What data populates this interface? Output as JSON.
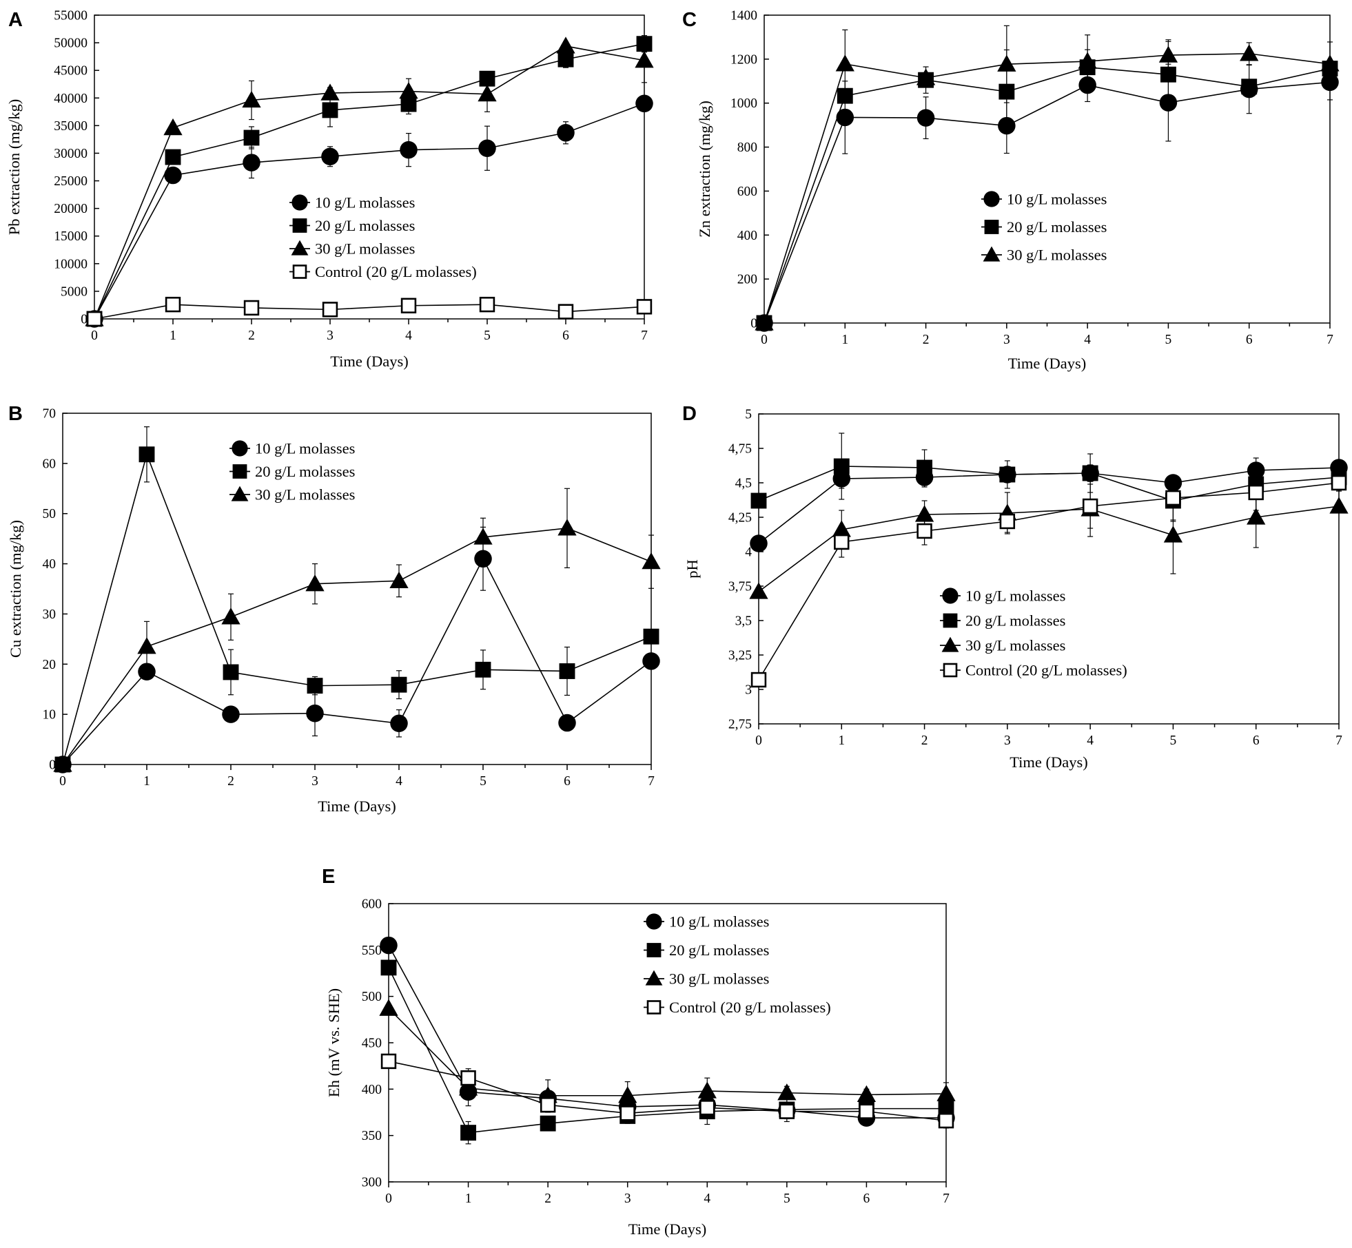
{
  "figure": {
    "colors": {
      "ink": "#000000",
      "background": "#ffffff"
    }
  },
  "chart_data": [
    {
      "panel": "A",
      "type": "line",
      "xlabel": "Time (Days)",
      "ylabel": "Pb extraction (mg/kg)",
      "xlim": [
        0,
        7
      ],
      "ylim": [
        0,
        55000
      ],
      "x_ticks": [
        0,
        1,
        2,
        3,
        4,
        5,
        6,
        7
      ],
      "y_ticks": [
        0,
        5000,
        10000,
        15000,
        20000,
        25000,
        30000,
        35000,
        40000,
        45000,
        50000,
        55000
      ],
      "y_tick_labels": [
        "0",
        "5000",
        "10000",
        "15000",
        "20000",
        "25000",
        "30000",
        "35000",
        "40000",
        "45000",
        "50000",
        "55000"
      ],
      "legend_position": "center-right",
      "x": [
        0,
        1,
        2,
        3,
        4,
        5,
        6,
        7
      ],
      "series": [
        {
          "name": "10 g/L molasses",
          "marker": "circle",
          "values": [
            0,
            26000,
            28300,
            29400,
            30600,
            30900,
            33700,
            39000
          ],
          "errors": [
            0,
            1000,
            2800,
            1800,
            3000,
            4000,
            2000,
            1000
          ]
        },
        {
          "name": "20 g/L molasses",
          "marker": "square",
          "values": [
            0,
            29300,
            32800,
            37800,
            38900,
            43500,
            47000,
            49800
          ],
          "errors": [
            0,
            1300,
            2000,
            3000,
            1800,
            1200,
            1500,
            1500
          ]
        },
        {
          "name": "30 g/L molasses",
          "marker": "triangle",
          "values": [
            0,
            34600,
            39600,
            40900,
            41200,
            40700,
            49400,
            46800
          ],
          "errors": [
            0,
            800,
            3500,
            1000,
            2300,
            3200,
            800,
            4000
          ]
        },
        {
          "name": "Control (20 g/L molasses)",
          "marker": "open-square",
          "values": [
            0,
            2600,
            2000,
            1700,
            2400,
            2600,
            1300,
            2200
          ],
          "errors": [
            0,
            0,
            0,
            0,
            0,
            0,
            0,
            0
          ]
        }
      ]
    },
    {
      "panel": "B",
      "type": "line",
      "xlabel": "Time (Days)",
      "ylabel": "Cu extraction (mg/kg)",
      "xlim": [
        0,
        7
      ],
      "ylim": [
        0,
        70
      ],
      "x_ticks": [
        0,
        1,
        2,
        3,
        4,
        5,
        6,
        7
      ],
      "y_ticks": [
        0,
        10,
        20,
        30,
        40,
        50,
        60,
        70
      ],
      "y_tick_labels": [
        "0",
        "10",
        "20",
        "30",
        "40",
        "50",
        "60",
        "70"
      ],
      "legend_position": "top-center",
      "x": [
        0,
        1,
        2,
        3,
        4,
        5,
        6,
        7
      ],
      "series": [
        {
          "name": "10 g/L molasses",
          "marker": "circle",
          "values": [
            0,
            18.5,
            10,
            10.2,
            8.2,
            41,
            8.3,
            20.6
          ],
          "errors": [
            0,
            0,
            1.5,
            4.5,
            2.7,
            6.3,
            1.5,
            0
          ]
        },
        {
          "name": "20 g/L molasses",
          "marker": "square",
          "values": [
            0,
            61.8,
            18.4,
            15.7,
            15.9,
            18.9,
            18.6,
            25.5
          ],
          "errors": [
            0,
            5.5,
            4.5,
            1.8,
            2.8,
            3.9,
            4.8,
            0
          ]
        },
        {
          "name": "30 g/L molasses",
          "marker": "triangle",
          "values": [
            0,
            23.5,
            29.4,
            36,
            36.6,
            45.3,
            47.1,
            40.4
          ],
          "errors": [
            0,
            5,
            4.6,
            4,
            3.2,
            3.8,
            7.9,
            5.3
          ]
        }
      ]
    },
    {
      "panel": "C",
      "type": "line",
      "xlabel": "Time (Days)",
      "ylabel": "Zn extraction (mg/kg)",
      "xlim": [
        0,
        7
      ],
      "ylim": [
        0,
        1400
      ],
      "x_ticks": [
        0,
        1,
        2,
        3,
        4,
        5,
        6,
        7
      ],
      "y_ticks": [
        0,
        200,
        400,
        600,
        800,
        1000,
        1200,
        1400
      ],
      "y_tick_labels": [
        "0",
        "200",
        "400",
        "600",
        "800",
        "1000",
        "1200",
        "1400"
      ],
      "legend_position": "center",
      "x": [
        0,
        1,
        2,
        3,
        4,
        5,
        6,
        7
      ],
      "series": [
        {
          "name": "10 g/L molasses",
          "marker": "circle",
          "values": [
            0,
            935,
            933,
            897,
            1082,
            1002,
            1063,
            1095
          ],
          "errors": [
            0,
            165,
            95,
            125,
            75,
            175,
            110,
            80
          ]
        },
        {
          "name": "20 g/L molasses",
          "marker": "square",
          "values": [
            0,
            1033,
            1105,
            1052,
            1163,
            1130,
            1075,
            1157
          ],
          "errors": [
            0,
            0,
            60,
            190,
            80,
            150,
            0,
            0
          ]
        },
        {
          "name": "30 g/L molasses",
          "marker": "triangle",
          "values": [
            0,
            1178,
            1115,
            1177,
            1190,
            1218,
            1225,
            1178
          ],
          "errors": [
            0,
            155,
            0,
            175,
            120,
            70,
            50,
            100
          ]
        }
      ]
    },
    {
      "panel": "D",
      "type": "line",
      "xlabel": "Time (Days)",
      "ylabel": "pH",
      "xlim": [
        0,
        7
      ],
      "ylim": [
        2.75,
        5
      ],
      "x_ticks": [
        0,
        1,
        2,
        3,
        4,
        5,
        6,
        7
      ],
      "y_ticks": [
        2.75,
        3,
        3.25,
        3.5,
        3.75,
        4,
        4.25,
        4.5,
        4.75,
        5
      ],
      "y_tick_labels": [
        "2,75",
        "3",
        "3,25",
        "3,5",
        "3,75",
        "4",
        "4,25",
        "4,5",
        "4,75",
        "5"
      ],
      "legend_position": "center",
      "x": [
        0,
        1,
        2,
        3,
        4,
        5,
        6,
        7
      ],
      "series": [
        {
          "name": "10 g/L molasses",
          "marker": "circle",
          "values": [
            4.06,
            4.53,
            4.54,
            4.56,
            4.57,
            4.5,
            4.59,
            4.61
          ],
          "errors": [
            0,
            0.07,
            0.07,
            0.05,
            0.06,
            0.05,
            0.05,
            0
          ]
        },
        {
          "name": "20 g/L molasses",
          "marker": "square",
          "values": [
            4.37,
            4.62,
            4.61,
            4.56,
            4.57,
            4.37,
            4.49,
            4.54
          ],
          "errors": [
            0,
            0.24,
            0.13,
            0.1,
            0.14,
            0.15,
            0.19,
            0.1
          ]
        },
        {
          "name": "30 g/L molasses",
          "marker": "triangle",
          "values": [
            3.71,
            4.16,
            4.27,
            4.28,
            4.31,
            4.12,
            4.25,
            4.33
          ],
          "errors": [
            0,
            0.14,
            0.1,
            0.15,
            0.2,
            0.28,
            0.22,
            0
          ]
        },
        {
          "name": "Control (20 g/L molasses)",
          "marker": "open-square",
          "values": [
            3.07,
            4.07,
            4.15,
            4.22,
            4.33,
            4.39,
            4.43,
            4.5
          ],
          "errors": [
            0,
            0.11,
            0.1,
            0.08,
            0.16,
            0.16,
            0.18,
            0.06
          ]
        }
      ]
    },
    {
      "panel": "E",
      "type": "line",
      "xlabel": "Time (Days)",
      "ylabel": "Eh (mV vs. SHE)",
      "xlim": [
        0,
        7
      ],
      "ylim": [
        300,
        600
      ],
      "x_ticks": [
        0,
        1,
        2,
        3,
        4,
        5,
        6,
        7
      ],
      "y_ticks": [
        300,
        350,
        400,
        450,
        500,
        550,
        600
      ],
      "y_tick_labels": [
        "300",
        "350",
        "400",
        "450",
        "500",
        "550",
        "600"
      ],
      "legend_position": "top-right",
      "x": [
        0,
        1,
        2,
        3,
        4,
        5,
        6,
        7
      ],
      "series": [
        {
          "name": "10 g/L molasses",
          "marker": "circle",
          "values": [
            555,
            397,
            390,
            381,
            383,
            377,
            369,
            369
          ],
          "errors": [
            0,
            15,
            6,
            8,
            6,
            6,
            6,
            0
          ]
        },
        {
          "name": "20 g/L molasses",
          "marker": "square",
          "values": [
            531,
            353,
            363,
            371,
            376,
            378,
            379,
            379
          ],
          "errors": [
            0,
            12,
            6,
            8,
            14,
            13,
            10,
            0
          ]
        },
        {
          "name": "30 g/L molasses",
          "marker": "triangle",
          "values": [
            487,
            401,
            393,
            393,
            398,
            396,
            394,
            395
          ],
          "errors": [
            0,
            0,
            17,
            15,
            14,
            7,
            6,
            12
          ]
        },
        {
          "name": "Control (20 g/L molasses)",
          "marker": "open-square",
          "values": [
            430,
            412,
            383,
            374,
            380,
            376,
            376,
            366
          ],
          "errors": [
            0,
            10,
            8,
            0,
            0,
            8,
            10,
            8
          ]
        }
      ]
    }
  ]
}
